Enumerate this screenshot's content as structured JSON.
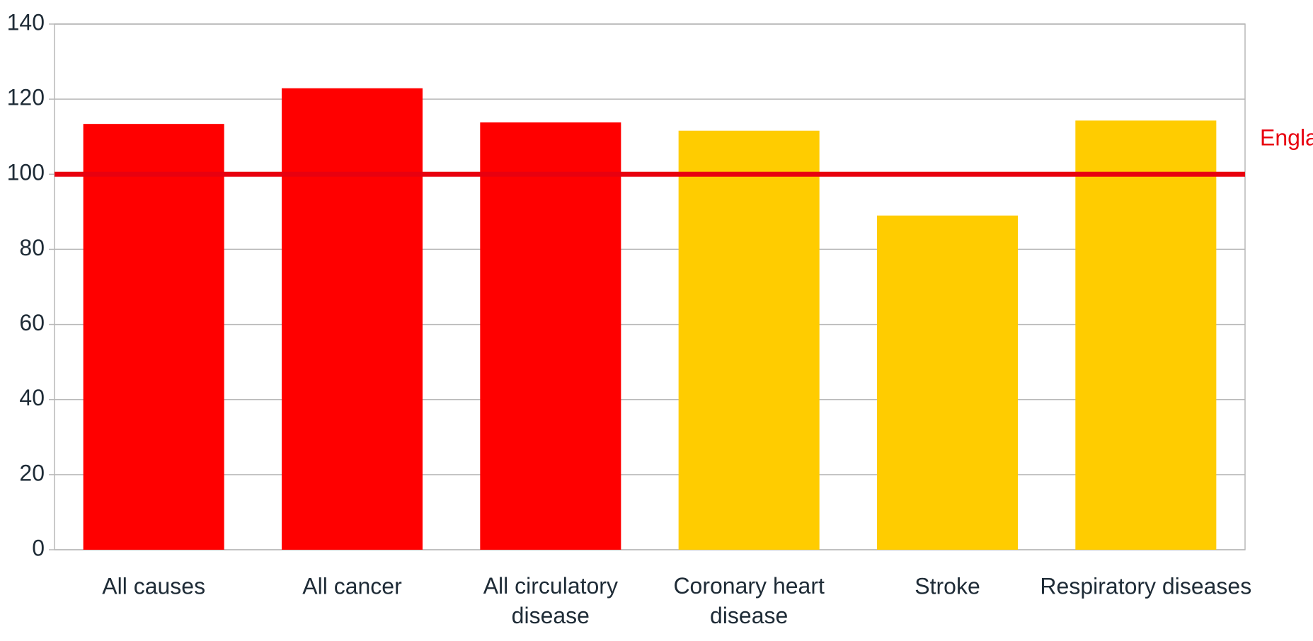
{
  "chart_data": {
    "type": "bar",
    "categories": [
      "All causes",
      "All cancer",
      "All circulatory disease",
      "Coronary heart disease",
      "Stroke",
      "Respiratory diseases"
    ],
    "values": [
      113.4,
      122.9,
      113.8,
      111.6,
      89,
      114.3
    ],
    "colors": [
      "#ff0000",
      "#ff0000",
      "#ff0000",
      "#ffcc00",
      "#ffcc00",
      "#ffcc00"
    ],
    "ylim": [
      0,
      140
    ],
    "yticks": [
      0,
      20,
      40,
      60,
      80,
      100,
      120,
      140
    ],
    "grid": true,
    "reference": {
      "label": "Engla",
      "value": 100,
      "color": "#e8000f"
    }
  }
}
